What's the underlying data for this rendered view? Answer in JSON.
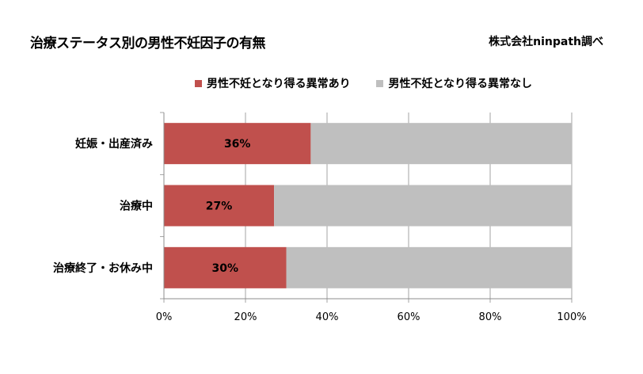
{
  "chart_data": {
    "type": "bar",
    "orientation": "horizontal",
    "stacked": true,
    "title": "治療ステータス別の男性不妊因子の有無",
    "source": "株式会社ninpath調べ",
    "categories": [
      "妊娠・出産済み",
      "治療中",
      "治療終了・お休み中"
    ],
    "series": [
      {
        "name": "男性不妊となり得る異常あり",
        "values": [
          36,
          27,
          30
        ],
        "labels": [
          "36%",
          "27%",
          "30%"
        ],
        "color": "#c0504d"
      },
      {
        "name": "男性不妊となり得る異常なし",
        "values": [
          64,
          73,
          70
        ],
        "labels": [
          "",
          "",
          ""
        ],
        "color": "#bfbfbf"
      }
    ],
    "xlim": [
      0,
      100
    ],
    "xticks": [
      "0%",
      "20%",
      "40%",
      "60%",
      "80%",
      "100%"
    ],
    "grid": true,
    "legend_position": "top"
  }
}
